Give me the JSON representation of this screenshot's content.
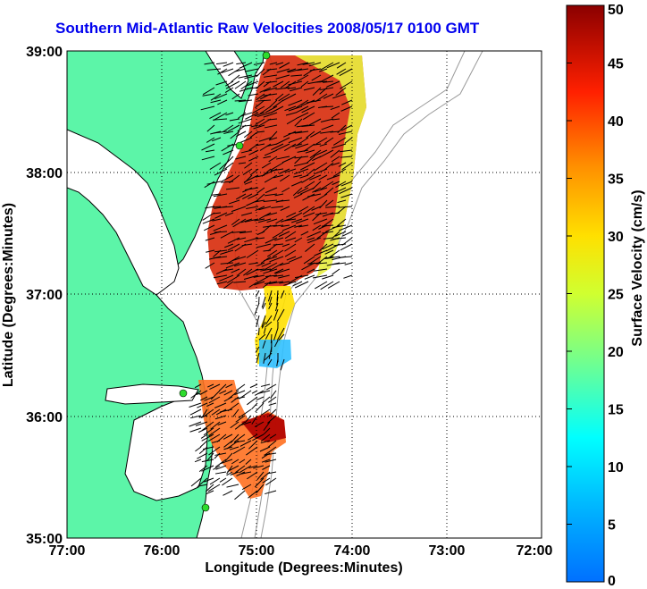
{
  "title": "Southern Mid-Atlantic Raw Velocities 2008/05/17 0100 GMT",
  "chart_data": {
    "type": "heatmap",
    "xlabel": "Longitude (Degrees:Minutes)",
    "ylabel": "Latitude (Degrees:Minutes)",
    "x_ticks": [
      "77:00",
      "76:00",
      "75:00",
      "74:00",
      "73:00",
      "72:00"
    ],
    "y_ticks": [
      "39:00",
      "38:00",
      "37:00",
      "36:00",
      "35:00"
    ],
    "xlim": [
      -77,
      -72
    ],
    "ylim": [
      35,
      39
    ],
    "grid": true,
    "colorbar": {
      "label": "Surface Velocity (cm/s)",
      "range": [
        0,
        50
      ],
      "ticks": [
        "0",
        "5",
        "10",
        "15",
        "20",
        "25",
        "30",
        "35",
        "40",
        "45",
        "50"
      ]
    },
    "land_color": "#5cf5a8",
    "vector_color": "#000000",
    "colormap": "jet"
  }
}
